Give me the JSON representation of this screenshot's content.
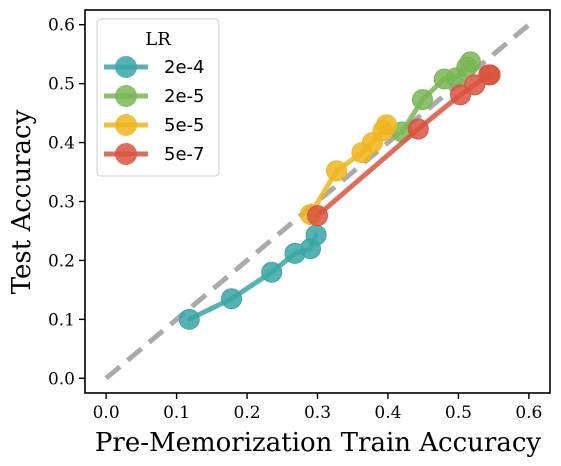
{
  "chart_data": {
    "type": "line",
    "title": "",
    "xlabel": "Pre-Memorization Train Accuracy",
    "ylabel": "Test Accuracy",
    "xlim": [
      -0.03,
      0.63
    ],
    "ylim": [
      -0.025,
      0.625
    ],
    "xticks": [
      "0.0",
      "0.1",
      "0.2",
      "0.3",
      "0.4",
      "0.5",
      "0.6"
    ],
    "yticks": [
      "0.0",
      "0.1",
      "0.2",
      "0.3",
      "0.4",
      "0.5",
      "0.6"
    ],
    "grid": false,
    "legend": {
      "title": "LR",
      "placement": "top-left"
    },
    "reference_line": {
      "style": "dashed",
      "color": "#aaaaaa",
      "from": [
        0,
        0
      ],
      "to": [
        0.6,
        0.6
      ]
    },
    "series": [
      {
        "name": "2e-4",
        "color": "#3aa6a6",
        "points": [
          [
            0.118,
            0.1
          ],
          [
            0.178,
            0.135
          ],
          [
            0.235,
            0.18
          ],
          [
            0.268,
            0.212
          ],
          [
            0.29,
            0.22
          ],
          [
            0.298,
            0.243
          ]
        ]
      },
      {
        "name": "2e-5",
        "color": "#79b653",
        "points": [
          [
            0.42,
            0.418
          ],
          [
            0.449,
            0.473
          ],
          [
            0.48,
            0.508
          ],
          [
            0.497,
            0.51
          ],
          [
            0.512,
            0.528
          ],
          [
            0.517,
            0.537
          ]
        ]
      },
      {
        "name": "5e-5",
        "color": "#f0b520",
        "points": [
          [
            0.29,
            0.278
          ],
          [
            0.327,
            0.352
          ],
          [
            0.363,
            0.383
          ],
          [
            0.378,
            0.4
          ],
          [
            0.393,
            0.42
          ],
          [
            0.398,
            0.43
          ]
        ]
      },
      {
        "name": "5e-7",
        "color": "#d9533f",
        "points": [
          [
            0.3,
            0.276
          ],
          [
            0.443,
            0.423
          ],
          [
            0.503,
            0.481
          ],
          [
            0.523,
            0.498
          ],
          [
            0.543,
            0.515
          ],
          [
            0.545,
            0.515
          ]
        ]
      }
    ]
  }
}
